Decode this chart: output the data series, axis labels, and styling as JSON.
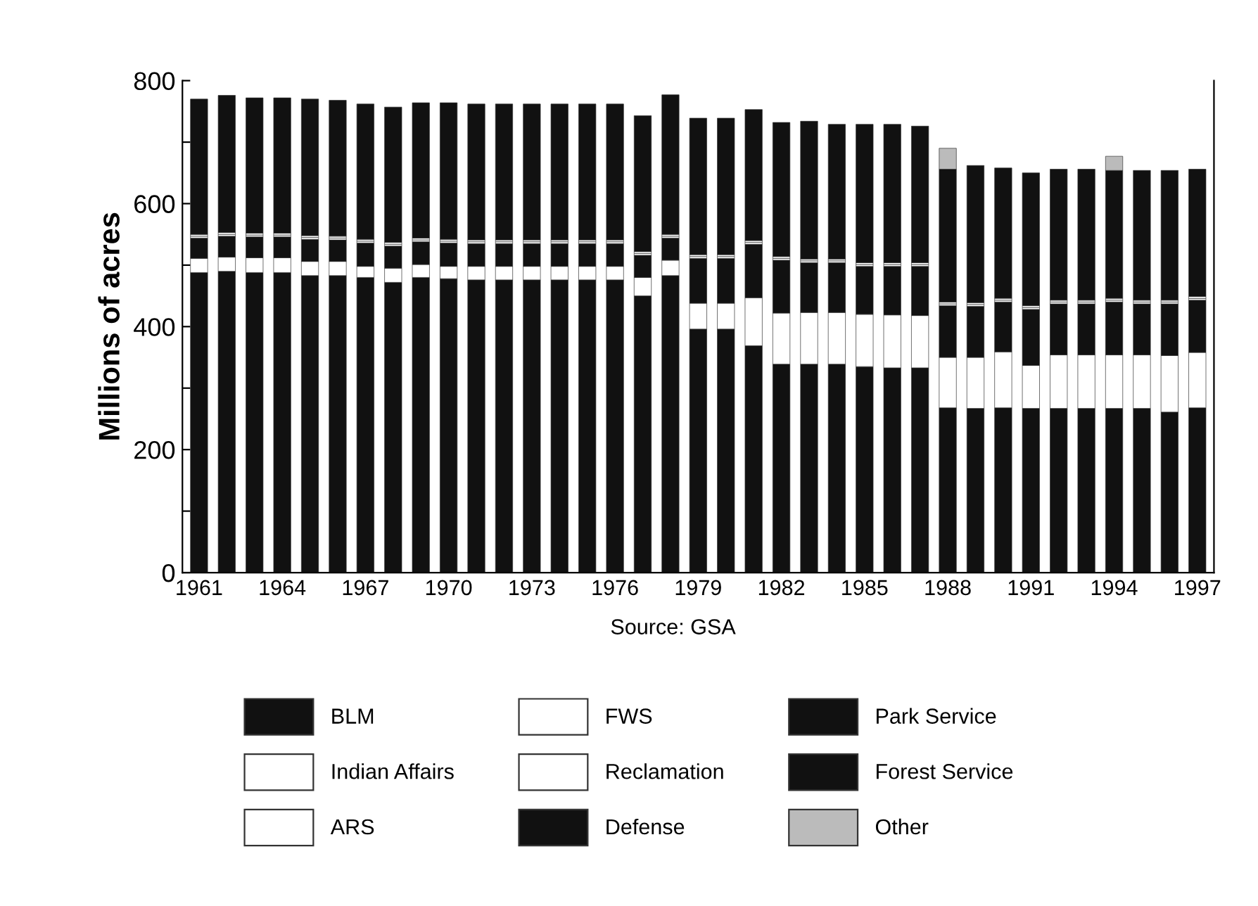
{
  "chart_data": {
    "type": "bar",
    "stacked": true,
    "ylabel": "Millions of acres",
    "categories": [
      "1961",
      null,
      null,
      "1964",
      null,
      null,
      "1967",
      null,
      null,
      "1970",
      null,
      null,
      "1973",
      null,
      null,
      "1976",
      null,
      null,
      "1979",
      null,
      null,
      "1982",
      null,
      null,
      "1985",
      null,
      null,
      "1988",
      null,
      null,
      "1991",
      null,
      null,
      "1994",
      null,
      null,
      "1997"
    ],
    "series": [
      {
        "name": "BLM",
        "color": "#111111",
        "values": [
          488,
          490,
          488,
          488,
          483,
          483,
          480,
          472,
          480,
          478,
          476,
          476,
          476,
          476,
          476,
          476,
          450,
          483,
          396,
          396,
          369,
          339,
          339,
          339,
          335,
          333,
          333,
          268,
          267,
          268,
          267,
          267,
          267,
          267,
          267,
          261,
          268
        ]
      },
      {
        "name": "FWS",
        "color": "#ffffff",
        "values": [
          23,
          23,
          24,
          24,
          23,
          23,
          18,
          23,
          21,
          20,
          22,
          22,
          22,
          22,
          22,
          22,
          30,
          25,
          42,
          42,
          78,
          83,
          84,
          84,
          85,
          86,
          85,
          82,
          83,
          91,
          70,
          87,
          87,
          87,
          87,
          92,
          90
        ]
      },
      {
        "name": "Park Service",
        "color": "#111111",
        "values": [
          33,
          34,
          34,
          34,
          36,
          35,
          38,
          36,
          37,
          38,
          37,
          37,
          37,
          37,
          37,
          37,
          36,
          36,
          73,
          73,
          87,
          86,
          81,
          81,
          78,
          79,
          80,
          84,
          83,
          81,
          91,
          83,
          83,
          86,
          83,
          84,
          85
        ]
      },
      {
        "name": "Indian Affairs",
        "color": "#ffffff",
        "values": [
          3,
          3,
          3,
          3,
          3,
          3,
          3,
          3,
          3,
          3,
          3,
          3,
          3,
          3,
          3,
          3,
          3,
          3,
          3,
          3,
          3,
          3,
          3,
          3,
          3,
          3,
          3,
          3,
          3,
          3,
          3,
          3,
          3,
          3,
          3,
          3,
          3
        ]
      },
      {
        "name": "Reclamation",
        "color": "#ffffff",
        "values": [
          3,
          3,
          3,
          3,
          3,
          3,
          3,
          3,
          3,
          3,
          3,
          3,
          3,
          3,
          3,
          3,
          3,
          3,
          3,
          3,
          3,
          3,
          3,
          3,
          3,
          3,
          3,
          3,
          3,
          3,
          3,
          3,
          3,
          3,
          3,
          3,
          3
        ]
      },
      {
        "name": "Forest Service",
        "color": "#111111",
        "values": [
          220,
          223,
          220,
          220,
          222,
          221,
          220,
          220,
          220,
          222,
          221,
          221,
          221,
          221,
          221,
          221,
          221,
          227,
          222,
          222,
          213,
          218,
          224,
          219,
          225,
          225,
          222,
          216,
          223,
          212,
          216,
          213,
          213,
          208,
          211,
          211,
          207
        ]
      },
      {
        "name": "ARS",
        "color": "#ffffff",
        "values": [
          null,
          null,
          null,
          null,
          null,
          null,
          null,
          null,
          null,
          null,
          null,
          null,
          null,
          null,
          null,
          null,
          null,
          null,
          null,
          null,
          null,
          null,
          null,
          null,
          null,
          null,
          null,
          null,
          null,
          null,
          null,
          null,
          null,
          null,
          null,
          null,
          null
        ]
      },
      {
        "name": "Defense",
        "color": "#111111",
        "values": [
          null,
          null,
          null,
          null,
          null,
          null,
          null,
          null,
          null,
          null,
          null,
          null,
          null,
          null,
          null,
          null,
          null,
          null,
          null,
          null,
          null,
          null,
          null,
          null,
          null,
          null,
          null,
          null,
          null,
          null,
          null,
          null,
          null,
          null,
          null,
          null,
          null
        ]
      },
      {
        "name": "Other",
        "color": "#bbbbbb",
        "values": [
          null,
          null,
          null,
          null,
          null,
          null,
          null,
          null,
          null,
          null,
          null,
          null,
          null,
          null,
          null,
          null,
          null,
          null,
          null,
          null,
          null,
          null,
          null,
          null,
          null,
          null,
          null,
          34,
          null,
          null,
          null,
          null,
          null,
          23,
          null,
          null,
          null
        ]
      }
    ],
    "ylim": [
      0,
      800
    ],
    "yticks": [
      0,
      {
        "value": 100,
        "label": null
      },
      200,
      {
        "value": 300,
        "label": null
      },
      400,
      {
        "value": 500,
        "label": null
      },
      600,
      {
        "value": 700,
        "label": null
      },
      800
    ],
    "grid": false,
    "legend": "bottom",
    "annotations": [
      "Source: GSA"
    ]
  }
}
